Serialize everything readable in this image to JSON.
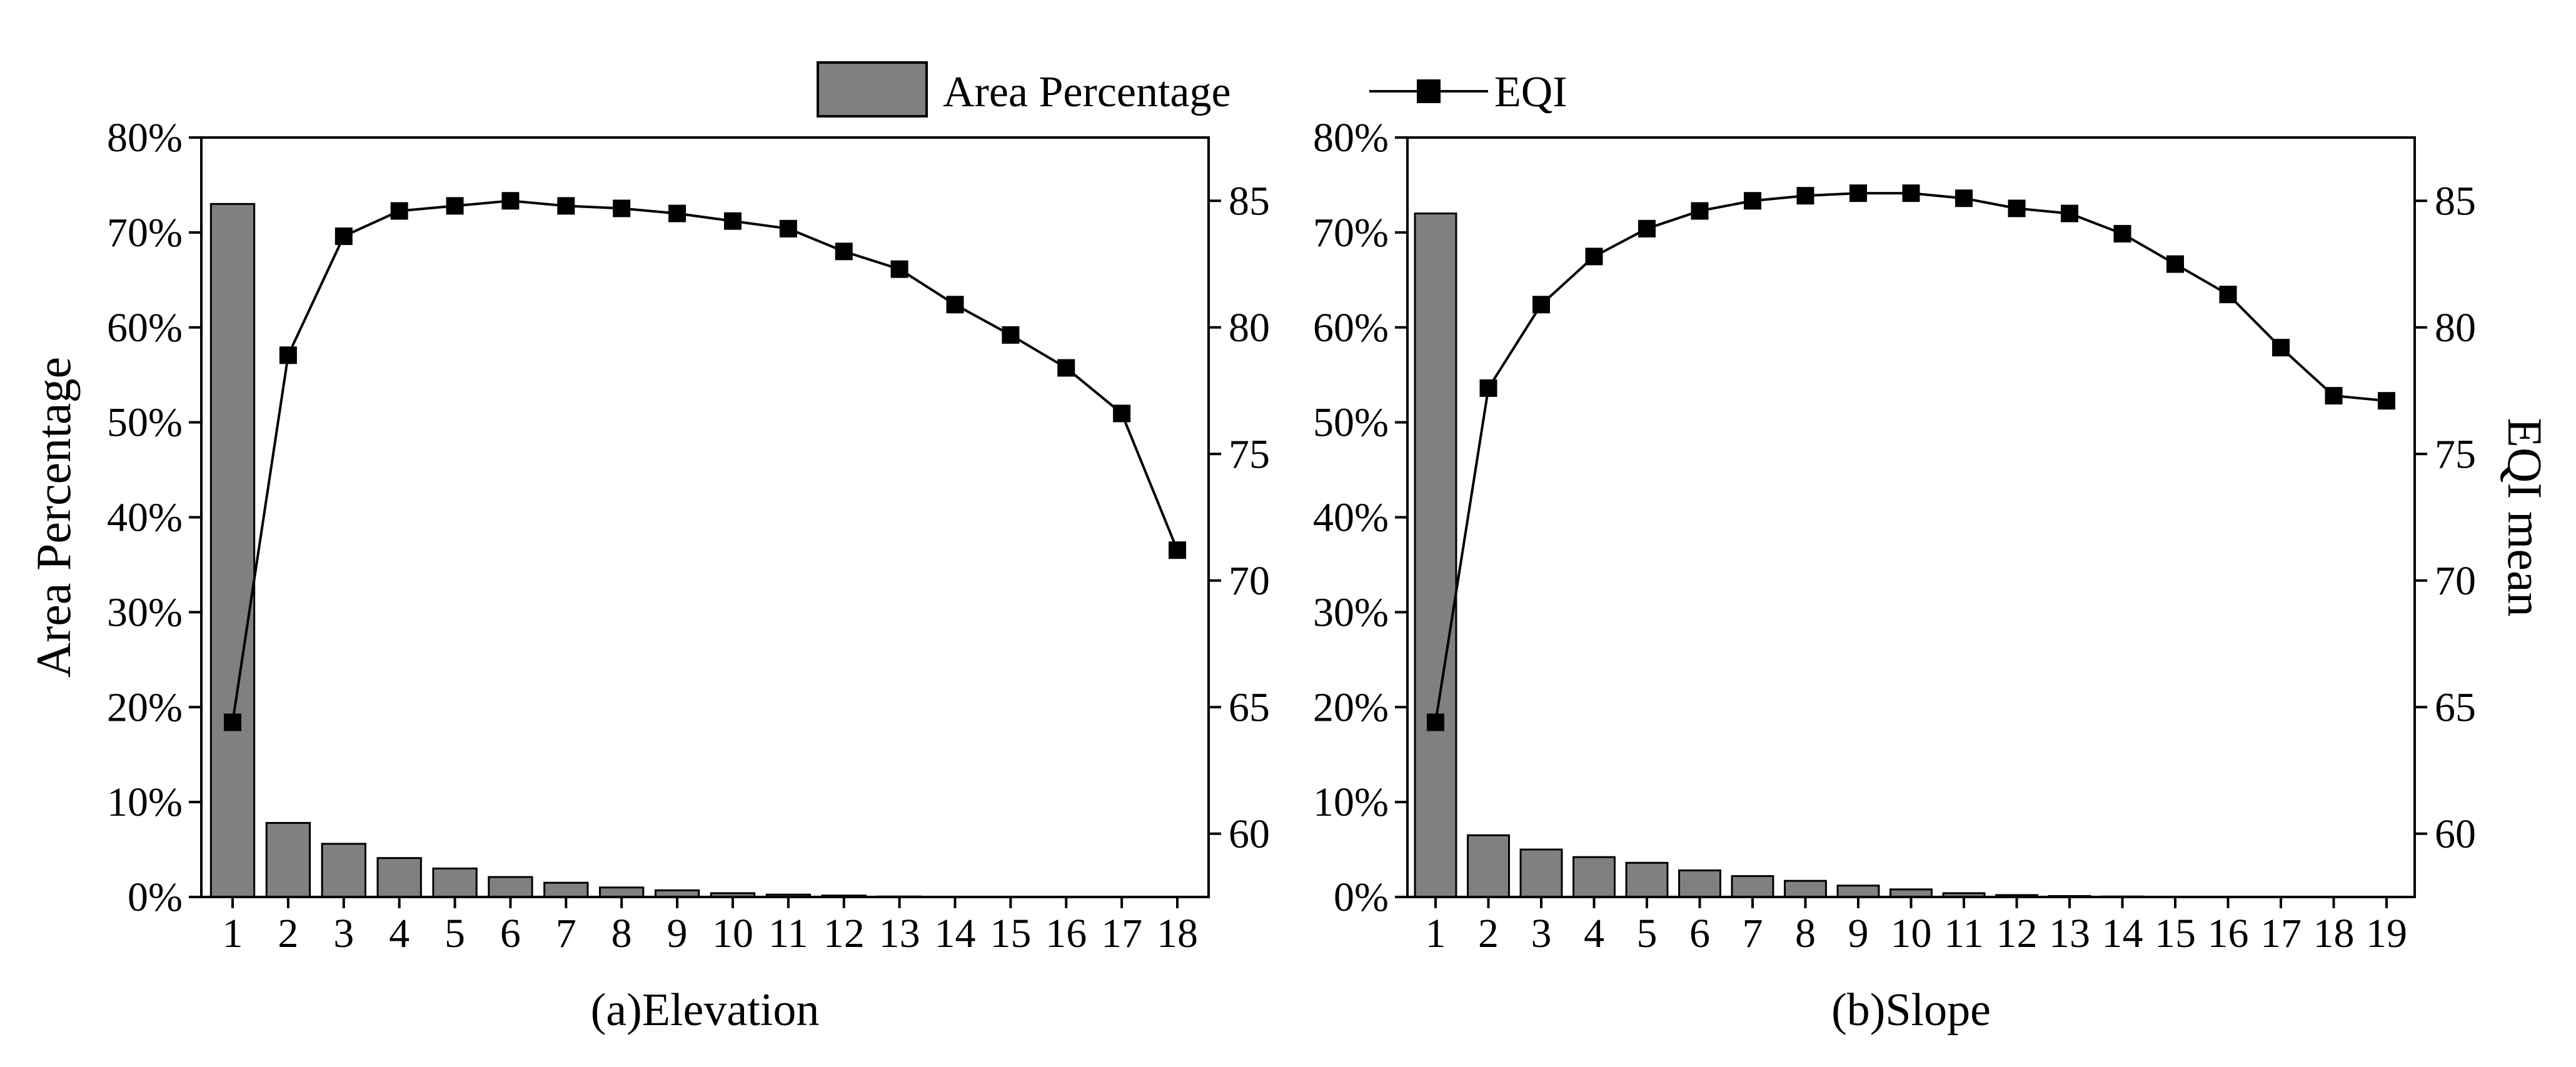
{
  "legend": {
    "bar_label": "Area Percentage",
    "line_label": "EQI"
  },
  "colors": {
    "bar_fill": "#808080",
    "bar_stroke": "#000000",
    "line": "#000000",
    "marker": "#000000"
  },
  "chart_data": [
    {
      "type": "bar+line",
      "panel_label": "(a)Elevation",
      "categories": [
        "1",
        "2",
        "3",
        "4",
        "5",
        "6",
        "7",
        "8",
        "9",
        "10",
        "11",
        "12",
        "13",
        "14",
        "15",
        "16",
        "17",
        "18"
      ],
      "series": [
        {
          "name": "Area Percentage",
          "axis": "left",
          "type": "bar",
          "values": [
            73.0,
            7.8,
            5.6,
            4.1,
            3.0,
            2.1,
            1.5,
            1.0,
            0.7,
            0.4,
            0.25,
            0.15,
            0.05,
            0.03,
            0.02,
            0.01,
            0.005,
            0.002
          ]
        },
        {
          "name": "EQI",
          "axis": "right",
          "type": "line",
          "values": [
            64.4,
            78.9,
            83.6,
            84.6,
            84.8,
            85.0,
            84.8,
            84.7,
            84.5,
            84.2,
            83.9,
            83.0,
            82.3,
            80.9,
            79.7,
            78.4,
            76.6,
            71.2
          ]
        }
      ],
      "ylabel_left": "Area Percentage",
      "ylabel_right": "",
      "ylim_left": [
        0,
        80
      ],
      "ylim_right": [
        57.5,
        87.5
      ],
      "yticks_left": [
        "0%",
        "10%",
        "20%",
        "30%",
        "40%",
        "50%",
        "60%",
        "70%",
        "80%"
      ],
      "yticks_right": [
        "60",
        "65",
        "70",
        "75",
        "80",
        "85"
      ]
    },
    {
      "type": "bar+line",
      "panel_label": "(b)Slope",
      "categories": [
        "1",
        "2",
        "3",
        "4",
        "5",
        "6",
        "7",
        "8",
        "9",
        "10",
        "11",
        "12",
        "13",
        "14",
        "15",
        "16",
        "17",
        "18",
        "19"
      ],
      "series": [
        {
          "name": "Area Percentage",
          "axis": "left",
          "type": "bar",
          "values": [
            72.0,
            6.5,
            5.0,
            4.2,
            3.6,
            2.8,
            2.2,
            1.7,
            1.2,
            0.8,
            0.4,
            0.2,
            0.1,
            0.05,
            0.03,
            0.02,
            0.01,
            0.005,
            0.002
          ]
        },
        {
          "name": "EQI",
          "axis": "right",
          "type": "line",
          "values": [
            64.4,
            77.6,
            80.9,
            82.8,
            83.9,
            84.6,
            85.0,
            85.2,
            85.3,
            85.3,
            85.1,
            84.7,
            84.5,
            83.7,
            82.5,
            81.3,
            79.2,
            77.3,
            77.1
          ]
        }
      ],
      "ylabel_left": "",
      "ylabel_right": "EQI mean",
      "ylim_left": [
        0,
        80
      ],
      "ylim_right": [
        57.5,
        87.5
      ],
      "yticks_left": [
        "0%",
        "10%",
        "20%",
        "30%",
        "40%",
        "50%",
        "60%",
        "70%",
        "80%"
      ],
      "yticks_right": [
        "60",
        "65",
        "70",
        "75",
        "80",
        "85"
      ]
    }
  ]
}
